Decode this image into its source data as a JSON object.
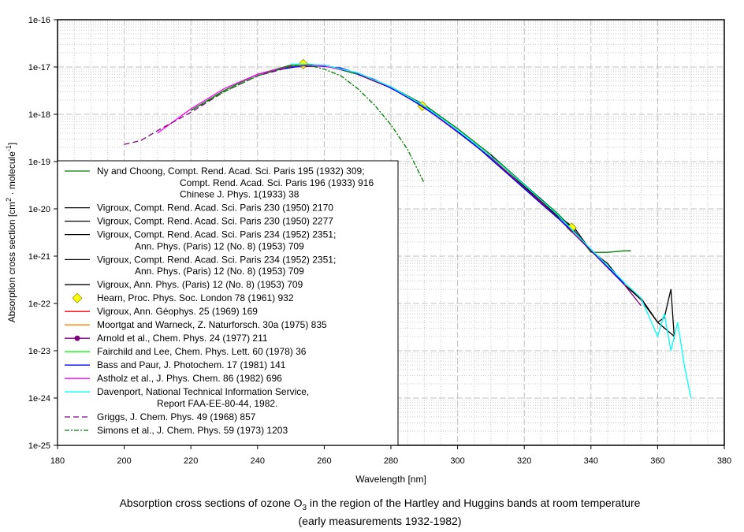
{
  "chart_data": {
    "type": "line",
    "title": "",
    "caption_line1_pre": "Absorption cross sections of ozone O",
    "caption_sub": "3",
    "caption_line1_post": " in the region of the Hartley and Huggins bands at room temperature",
    "caption_line2": "(early measurements 1932-1982)",
    "xlabel": "Wavelength [nm]",
    "ylabel_pre": "Absorption cross section [cm",
    "ylabel_sup1": "2",
    "ylabel_mid": " · molecule",
    "ylabel_sup2": "-1",
    "ylabel_post": "]",
    "xlim": [
      180,
      380
    ],
    "ylim_log10": [
      -25,
      -16
    ],
    "yscale": "log",
    "grid": true,
    "x_ticks": [
      "180",
      "200",
      "220",
      "240",
      "260",
      "280",
      "300",
      "320",
      "340",
      "360",
      "380"
    ],
    "y_ticks": [
      "1e-25",
      "1e-24",
      "1e-23",
      "1e-22",
      "1e-21",
      "1e-20",
      "1e-19",
      "1e-18",
      "1e-17",
      "1e-16"
    ],
    "legend_position": "bottom-left",
    "series": [
      {
        "name": "Ny and Choong",
        "legend": [
          "Ny and Choong, Compt. Rend. Acad. Sci. Paris 195 (1932) 309;",
          "Compt. Rend. Acad. Sci. Paris 196 (1933) 916",
          "Chinese J. Phys. 1(1933) 38"
        ],
        "color": "#007f00",
        "style": "solid",
        "x": [
          220,
          230,
          240,
          250,
          255,
          260,
          270,
          280,
          290,
          300,
          310,
          320,
          330,
          335,
          340,
          345,
          350,
          352
        ],
        "y": [
          1.2e-18,
          3.2e-18,
          7e-18,
          1.1e-17,
          1.15e-17,
          1.08e-17,
          7e-18,
          3.8e-18,
          1.6e-18,
          5e-19,
          1.4e-19,
          3.3e-20,
          8e-21,
          3.5e-21,
          1.2e-21,
          1.2e-21,
          1.3e-21,
          1.3e-21
        ]
      },
      {
        "name": "Vigroux 1950a",
        "legend": [
          "Vigroux, Compt. Rend. Acad. Sci. Paris 230 (1950) 2170"
        ],
        "color": "#000000",
        "style": "solid",
        "x": [
          300,
          310,
          320,
          325,
          330,
          335,
          340,
          345,
          350,
          355,
          360,
          365
        ],
        "y": [
          4.5e-19,
          1.3e-19,
          3e-20,
          1.6e-20,
          7e-21,
          4e-21,
          1.3e-21,
          7e-22,
          2.5e-22,
          1.2e-22,
          4e-23,
          2e-23
        ]
      },
      {
        "name": "Vigroux 1950b",
        "legend": [
          "Vigroux, Compt. Rend. Acad. Sci. Paris 230 (1950) 2277"
        ],
        "color": "#000000",
        "style": "solid",
        "x": [
          240,
          250,
          260,
          270,
          280,
          290
        ],
        "y": [
          7e-18,
          1e-17,
          1.05e-17,
          7.5e-18,
          3.8e-18,
          1.4e-18
        ]
      },
      {
        "name": "Vigroux 1952a",
        "legend": [
          "Vigroux, Compt. Rend. Acad. Sci. Paris 234 (1952) 2351;",
          "Ann. Phys. (Paris) 12 (No. 8) (1953) 709"
        ],
        "color": "#000000",
        "style": "solid",
        "x": [
          310,
          315,
          320,
          325,
          330,
          335,
          340,
          345,
          350
        ],
        "y": [
          1.4e-19,
          6e-20,
          3e-20,
          1.5e-20,
          7e-21,
          3.5e-21,
          1.3e-21,
          6e-22,
          2.5e-22
        ]
      },
      {
        "name": "Vigroux 1952b",
        "legend": [
          "Vigroux, Compt. Rend. Acad. Sci. Paris 234 (1952) 2351;",
          "Ann. Phys. (Paris) 12 (No. 8) (1953) 709"
        ],
        "color": "#000000",
        "style": "solid",
        "x": [
          340,
          345,
          350,
          355,
          360,
          362,
          364,
          365
        ],
        "y": [
          1.3e-21,
          6e-22,
          2.5e-22,
          1.3e-22,
          4e-23,
          5e-23,
          2e-22,
          1.8e-23
        ]
      },
      {
        "name": "Vigroux 1953",
        "legend": [
          "Vigroux, Ann. Phys. (Paris) 12 (No. 8) (1953) 709"
        ],
        "color": "#000000",
        "style": "solid",
        "x": [
          290,
          300,
          310,
          320,
          330
        ],
        "y": [
          1.5e-18,
          4.5e-19,
          1.3e-19,
          3e-20,
          7e-21
        ]
      },
      {
        "name": "Hearn",
        "legend": [
          "Hearn, Proc. Phys. Soc. London 78 (1961) 932"
        ],
        "color": "#ffff00",
        "style": "marker",
        "x": [
          253.7,
          289.4,
          334.2
        ],
        "y": [
          1.15e-17,
          1.5e-18,
          4e-21
        ]
      },
      {
        "name": "Vigroux 1969",
        "legend": [
          "Vigroux, Ann. Géophys. 25 (1969) 169"
        ],
        "color": "#ff0000",
        "style": "solid",
        "x": [
          310,
          315,
          320,
          325,
          330
        ],
        "y": [
          1.3e-19,
          6e-20,
          2.8e-20,
          1.4e-20,
          6.5e-21
        ]
      },
      {
        "name": "Moortgat and Warneck",
        "legend": [
          "Moortgat and Warneck, Z. Naturforsch. 30a (1975) 835"
        ],
        "color": "#ff8000",
        "style": "solid",
        "x": [
          300,
          310,
          320,
          325,
          330
        ],
        "y": [
          4.4e-19,
          1.3e-19,
          2.8e-20,
          1.3e-20,
          6.5e-21
        ]
      },
      {
        "name": "Arnold et al.",
        "legend": [
          "Arnold et al., Chem. Phys. 24 (1977) 211"
        ],
        "color": "#800080",
        "style": "marker-line",
        "x": [
          270,
          280,
          290,
          300,
          310,
          320,
          330,
          340,
          350,
          355
        ],
        "y": [
          7e-18,
          3.6e-18,
          1.4e-18,
          4.2e-19,
          1.2e-19,
          2.8e-20,
          6.5e-21,
          1.3e-21,
          2.5e-22,
          9e-23
        ]
      },
      {
        "name": "Fairchild and Lee",
        "legend": [
          "Fairchild and Lee, Chem. Phys. Lett. 60 (1978) 36"
        ],
        "color": "#00ff00",
        "style": "solid",
        "x": [
          250,
          260,
          270,
          280,
          290,
          300
        ],
        "y": [
          1.1e-17,
          1.1e-17,
          7.5e-18,
          3.8e-18,
          1.5e-18,
          4.6e-19
        ]
      },
      {
        "name": "Bass and Paur",
        "legend": [
          "Bass and Paur, J. Photochem. 17 (1981) 141"
        ],
        "color": "#0000ff",
        "style": "solid",
        "x": [
          245,
          255,
          265,
          275,
          285,
          295,
          305,
          315,
          325,
          335,
          345,
          350
        ],
        "y": [
          8.5e-18,
          1.1e-17,
          9.5e-18,
          5.5e-18,
          2.3e-18,
          8e-19,
          2.3e-19,
          5.5e-20,
          1.3e-20,
          3.2e-21,
          6e-22,
          2.6e-22
        ]
      },
      {
        "name": "Astholz et al.",
        "legend": [
          "Astholz et al., J. Phys. Chem. 86 (1982) 696"
        ],
        "color": "#ff00ff",
        "style": "solid",
        "x": [
          210,
          220,
          230,
          240,
          250,
          260,
          270,
          280,
          290,
          300
        ],
        "y": [
          4e-19,
          1.3e-18,
          3.5e-18,
          7e-18,
          1.05e-17,
          1.05e-17,
          7.5e-18,
          3.8e-18,
          1.5e-18,
          4.5e-19
        ]
      },
      {
        "name": "Davenport",
        "legend": [
          "Davenport, National Technical Information Service,",
          "Report FAA-EE-80-44, 1982."
        ],
        "color": "#00ffff",
        "style": "solid",
        "x": [
          250,
          260,
          270,
          280,
          290,
          300,
          310,
          320,
          330,
          340,
          350,
          355,
          360,
          362,
          364,
          366,
          368,
          370
        ],
        "y": [
          1.15e-17,
          1.1e-17,
          7.5e-18,
          3.8e-18,
          1.5e-18,
          4.6e-19,
          1.3e-19,
          3.2e-20,
          7.5e-21,
          1.4e-21,
          2.8e-22,
          1.3e-22,
          2e-23,
          6e-23,
          1e-23,
          4e-23,
          5e-24,
          1e-24
        ]
      },
      {
        "name": "Griggs",
        "legend": [
          "Griggs, J. Chem. Phys. 49 (1968) 857"
        ],
        "color": "#800080",
        "style": "dash",
        "x": [
          200,
          205,
          210,
          220,
          230,
          240,
          250
        ],
        "y": [
          2.3e-19,
          2.8e-19,
          4.5e-19,
          1.1e-18,
          3e-18,
          6.5e-18,
          1e-17
        ]
      },
      {
        "name": "Simons et al.",
        "legend": [
          "Simons et al., J. Chem. Phys. 59 (1973) 1203"
        ],
        "color": "#007f00",
        "style": "dashdot",
        "x": [
          220,
          230,
          240,
          250,
          255,
          260,
          265,
          270,
          275,
          280,
          285,
          290
        ],
        "y": [
          1.2e-18,
          3e-18,
          6.5e-18,
          1.05e-17,
          1.1e-17,
          9e-18,
          6.5e-18,
          3.5e-18,
          1.6e-18,
          6e-19,
          1.8e-19,
          3.5e-20
        ]
      }
    ]
  }
}
